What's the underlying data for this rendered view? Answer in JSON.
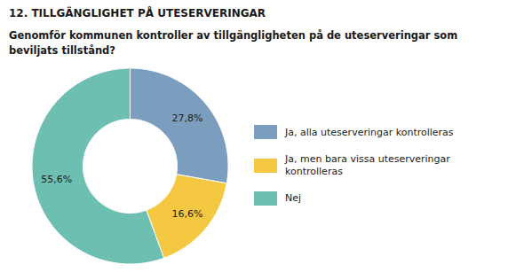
{
  "chart_data": {
    "type": "pie",
    "title": "12. TILLGÄNGLIGHET PÅ UTESERVERINGAR",
    "subtitle": "Genomför kommunen kontroller av tillgängligheten på de uteserveringar som\nbeviljats tillstånd?",
    "categories": [
      "Ja, alla uteserveringar kontrolleras",
      "Ja, men bara vissa uteserveringar\nkontrolleras",
      "Nej"
    ],
    "values": [
      27.8,
      16.6,
      55.6
    ],
    "value_labels": [
      "27,8%",
      "16,6%",
      "55,6%"
    ],
    "colors": [
      "#7b9ebe",
      "#f5c842",
      "#6dbfb2"
    ],
    "data_labels": true,
    "legend": "right"
  }
}
